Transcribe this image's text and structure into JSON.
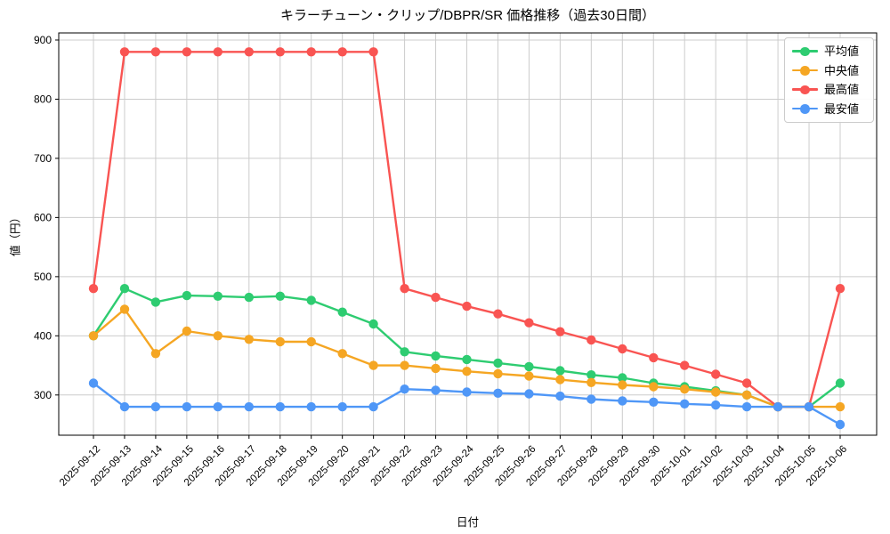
{
  "chart_data": {
    "type": "line",
    "title": "キラーチューン・クリップ/DBPR/SR 価格推移（過去30日間）",
    "xlabel": "日付",
    "ylabel": "値（円）",
    "grid": true,
    "legend_position": "upper right",
    "ylim": [
      232,
      912
    ],
    "y_ticks": [
      300,
      400,
      500,
      600,
      700,
      800,
      900
    ],
    "x_tick_labels": [
      "2025-09-12",
      "2025-09-13",
      "2025-09-14",
      "2025-09-15",
      "2025-09-16",
      "2025-09-17",
      "2025-09-18",
      "2025-09-19",
      "2025-09-20",
      "2025-09-21",
      "2025-09-22",
      "2025-09-23",
      "2025-09-24",
      "2025-09-25",
      "2025-09-26",
      "2025-09-27",
      "2025-09-28",
      "2025-09-29",
      "2025-09-30",
      "2025-10-01",
      "2025-10-02",
      "2025-10-03",
      "2025-10-04",
      "2025-10-05",
      "2025-10-06"
    ],
    "series": [
      {
        "key": "average",
        "name": "平均値",
        "color": "#2ecc71",
        "values": [
          400,
          480,
          457,
          468,
          467,
          465,
          467,
          460,
          440,
          420,
          373,
          366,
          360,
          354,
          348,
          341,
          334,
          329,
          320,
          314,
          307,
          300,
          280,
          280,
          320
        ]
      },
      {
        "key": "median",
        "name": "中央値",
        "color": "#f5a623",
        "values": [
          400,
          445,
          370,
          408,
          400,
          394,
          390,
          390,
          370,
          350,
          350,
          345,
          340,
          336,
          332,
          326,
          321,
          317,
          314,
          310,
          305,
          300,
          280,
          280,
          280
        ]
      },
      {
        "key": "max",
        "name": "最高値",
        "color": "#f95452",
        "values": [
          480,
          880,
          880,
          880,
          880,
          880,
          880,
          880,
          880,
          880,
          480,
          465,
          450,
          437,
          422,
          407,
          393,
          378,
          363,
          350,
          335,
          320,
          280,
          280,
          480
        ]
      },
      {
        "key": "min",
        "name": "最安値",
        "color": "#4f97f7",
        "values": [
          320,
          280,
          280,
          280,
          280,
          280,
          280,
          280,
          280,
          280,
          310,
          308,
          305,
          303,
          302,
          298,
          293,
          290,
          288,
          285,
          283,
          280,
          280,
          280,
          250
        ]
      }
    ],
    "style": {
      "grid_color": "#cccccc",
      "spine_color": "#000000",
      "background": "#ffffff"
    }
  }
}
